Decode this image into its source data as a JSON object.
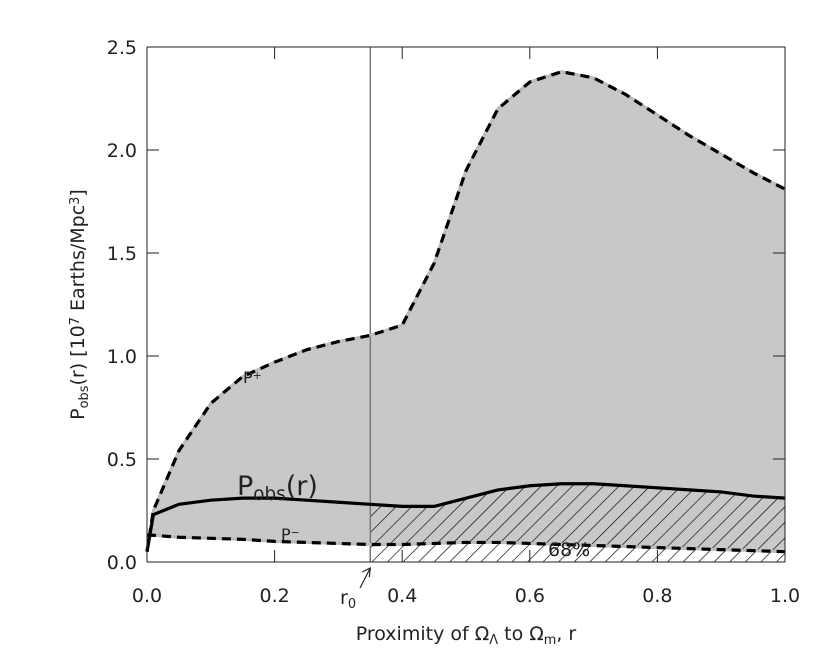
{
  "chart_data": {
    "type": "line",
    "x": [
      0,
      0.01,
      0.05,
      0.1,
      0.15,
      0.2,
      0.25,
      0.3,
      0.35,
      0.4,
      0.45,
      0.5,
      0.55,
      0.6,
      0.65,
      0.7,
      0.75,
      0.8,
      0.85,
      0.9,
      0.95,
      1.0
    ],
    "series": [
      {
        "name": "P+",
        "color": "#000000",
        "dash": true,
        "values": [
          0.05,
          0.25,
          0.54,
          0.77,
          0.9,
          0.97,
          1.03,
          1.07,
          1.1,
          1.15,
          1.45,
          1.9,
          2.2,
          2.33,
          2.38,
          2.35,
          2.27,
          2.17,
          2.07,
          1.98,
          1.89,
          1.81
        ]
      },
      {
        "name": "Pobs(r)",
        "color": "#000000",
        "dash": false,
        "values": [
          0.05,
          0.23,
          0.28,
          0.3,
          0.31,
          0.31,
          0.3,
          0.29,
          0.28,
          0.27,
          0.27,
          0.31,
          0.35,
          0.37,
          0.38,
          0.38,
          0.37,
          0.36,
          0.35,
          0.34,
          0.32,
          0.31
        ]
      },
      {
        "name": "P-",
        "color": "#000000",
        "dash": true,
        "values": [
          0.13,
          0.13,
          0.12,
          0.115,
          0.11,
          0.1,
          0.095,
          0.09,
          0.085,
          0.085,
          0.09,
          0.095,
          0.095,
          0.09,
          0.085,
          0.08,
          0.075,
          0.07,
          0.065,
          0.06,
          0.055,
          0.05
        ]
      }
    ],
    "band_color": "#c8c8c8",
    "r0": 0.35,
    "xlim": [
      0,
      1.0
    ],
    "ylim": [
      0,
      2.5
    ],
    "xticks": [
      {
        "value": 0,
        "label": "0.0"
      },
      0.2,
      0.4,
      0.6,
      0.8,
      {
        "value": 1.0,
        "label": "1.0"
      }
    ],
    "yticks": [
      {
        "value": 0,
        "label": "0.0"
      },
      0.5,
      {
        "value": 1.0,
        "label": "1.0"
      },
      1.5,
      {
        "value": 2.0,
        "label": "2.0"
      },
      2.5
    ],
    "xlabel": [
      {
        "text": "Proximity of Ω",
        "shift": "base"
      },
      {
        "text": "Λ",
        "shift": "sub"
      },
      {
        "text": " to Ω",
        "shift": "base"
      },
      {
        "text": "m",
        "shift": "sub"
      },
      {
        "text": ", r",
        "shift": "base"
      }
    ],
    "ylabel": [
      {
        "text": "P",
        "shift": "base"
      },
      {
        "text": "obs",
        "shift": "sub"
      },
      {
        "text": "(r)  [10",
        "shift": "base"
      },
      {
        "text": "7",
        "shift": "sup"
      },
      {
        "text": " Earths/Mpc",
        "shift": "base"
      },
      {
        "text": "3",
        "shift": "sup"
      },
      {
        "text": "]",
        "shift": "base"
      }
    ],
    "annotations": {
      "p_plus": [
        {
          "text": "P",
          "shift": "base"
        },
        {
          "text": "+",
          "shift": "sup"
        }
      ],
      "p_minus": [
        {
          "text": "P",
          "shift": "base"
        },
        {
          "text": "−",
          "shift": "sup"
        }
      ],
      "p_obs": [
        {
          "text": "P",
          "shift": "base"
        },
        {
          "text": "obs",
          "shift": "sub"
        },
        {
          "text": "(r)",
          "shift": "base"
        }
      ],
      "percent": "68%",
      "r0": [
        {
          "text": "r",
          "shift": "base"
        },
        {
          "text": "0",
          "shift": "sub"
        }
      ]
    }
  }
}
